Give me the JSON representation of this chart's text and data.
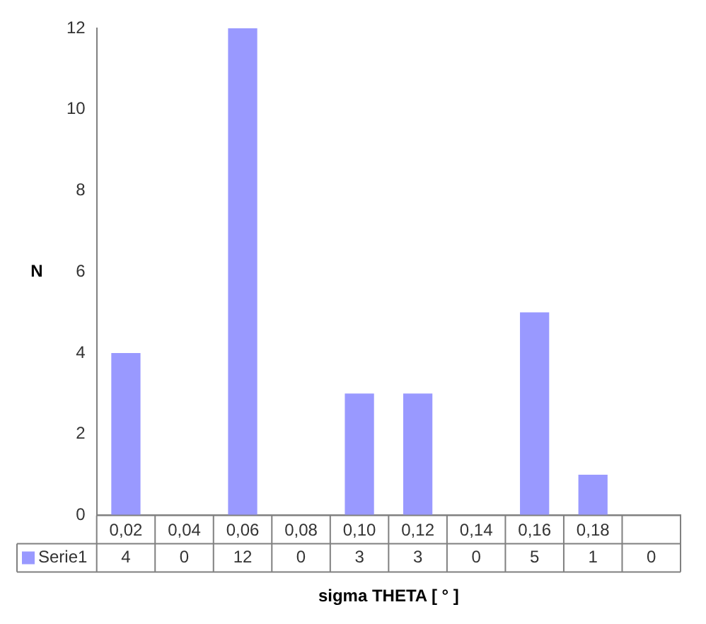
{
  "chart_data": {
    "type": "bar",
    "xlabel": "sigma THETA [ ° ]",
    "ylabel": "N",
    "categories": [
      "0,02",
      "0,04",
      "0,06",
      "0,08",
      "0,10",
      "0,12",
      "0,14",
      "0,16",
      "0,18",
      null
    ],
    "series": [
      {
        "name": "Serie1",
        "color": "#9999ff",
        "values": [
          4,
          0,
          12,
          0,
          3,
          3,
          0,
          5,
          1,
          0
        ]
      }
    ],
    "ylim": [
      0,
      12
    ],
    "yticks": [
      0,
      2,
      4,
      6,
      8,
      10,
      12
    ],
    "grid": false,
    "legend": "bottom",
    "data_labels": true
  }
}
